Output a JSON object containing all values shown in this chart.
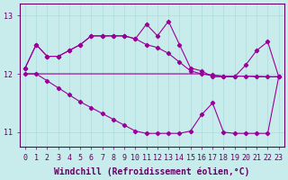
{
  "x": [
    0,
    1,
    2,
    3,
    4,
    5,
    6,
    7,
    8,
    9,
    10,
    11,
    12,
    13,
    14,
    15,
    16,
    17,
    18,
    19,
    20,
    21,
    22,
    23
  ],
  "line1": [
    12.1,
    12.5,
    12.3,
    12.3,
    12.4,
    12.5,
    12.65,
    12.65,
    12.65,
    12.65,
    12.6,
    12.85,
    12.65,
    12.9,
    12.5,
    12.1,
    12.05,
    11.95,
    11.95,
    11.95,
    12.15,
    12.4,
    12.55,
    11.95
  ],
  "line2": [
    12.1,
    12.5,
    12.3,
    12.3,
    12.4,
    12.5,
    12.65,
    12.65,
    12.65,
    12.65,
    12.6,
    12.5,
    12.45,
    12.35,
    12.2,
    12.05,
    12.0,
    11.98,
    11.96,
    11.96,
    11.96,
    11.96,
    11.95,
    11.95
  ],
  "line3": [
    12.0,
    12.0,
    12.0,
    12.0,
    12.0,
    12.0,
    12.0,
    12.0,
    12.0,
    12.0,
    12.0,
    12.0,
    12.0,
    12.0,
    12.0,
    12.0,
    12.0,
    11.97,
    11.96,
    11.96,
    11.96,
    11.95,
    11.95,
    11.95
  ],
  "line4": [
    12.0,
    12.0,
    11.88,
    11.76,
    11.64,
    11.52,
    11.42,
    11.32,
    11.22,
    11.12,
    11.02,
    10.98,
    10.98,
    10.98,
    10.98,
    11.02,
    11.3,
    11.5,
    11.0,
    10.98,
    10.98,
    10.98,
    10.98,
    11.95
  ],
  "bg_color": "#c8ecec",
  "line_color": "#990099",
  "grid_color": "#aadddd",
  "axis_color": "#660066",
  "text_color": "#660066",
  "ylim": [
    10.75,
    13.2
  ],
  "yticks": [
    11,
    12,
    13
  ],
  "xlim": [
    -0.5,
    23.5
  ],
  "xlabel": "Windchill (Refroidissement éolien,°C)",
  "xlabel_fontsize": 7,
  "tick_fontsize": 6
}
